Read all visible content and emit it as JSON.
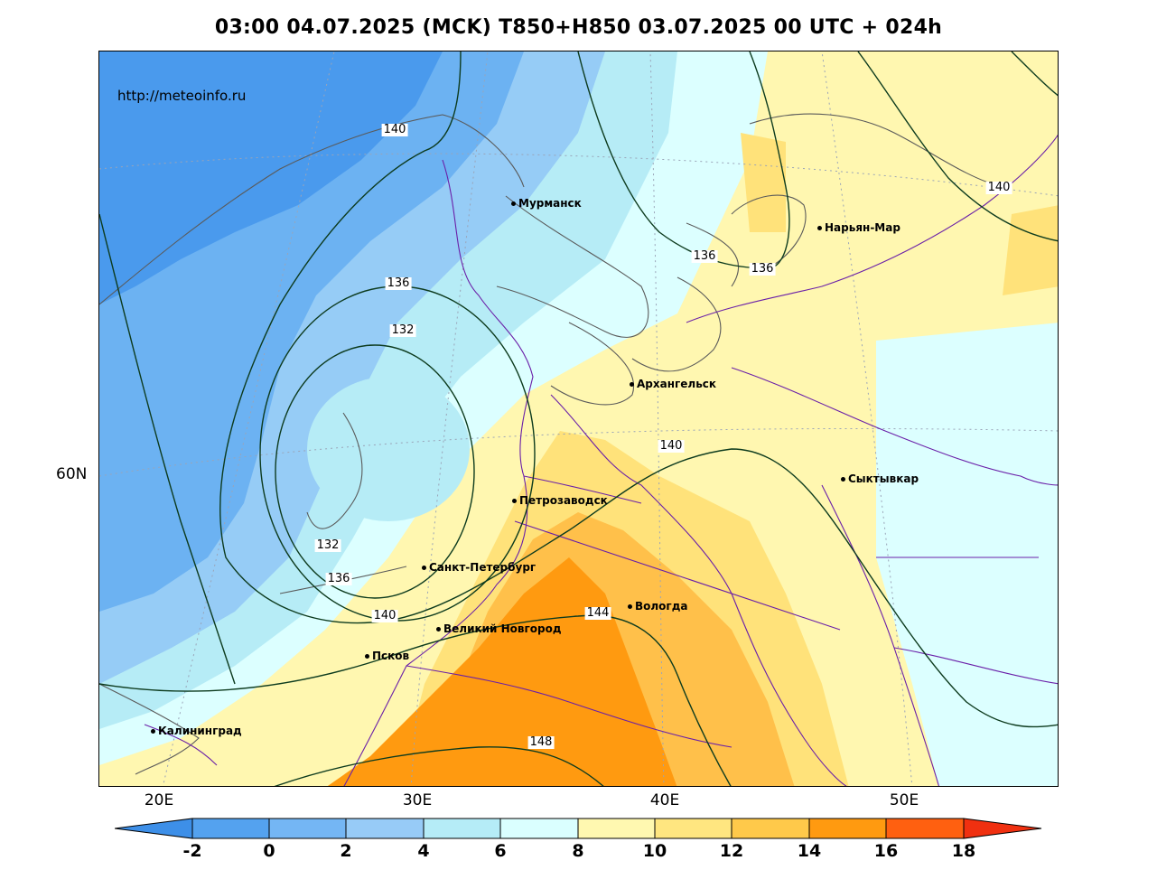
{
  "title": "03:00 04.07.2025 (MCK) T850+H850 03.07.2025 00 UTC + 024h",
  "site_url": "http://meteoinfo.ru",
  "axis_labels": {
    "lon": [
      "20E",
      "30E",
      "40E",
      "50E"
    ],
    "lat": [
      "60N"
    ]
  },
  "cities": [
    {
      "name": "Мурманск"
    },
    {
      "name": "Нарьян-Мар"
    },
    {
      "name": "Архангельск"
    },
    {
      "name": "Сыктывкар"
    },
    {
      "name": "Петрозаводск"
    },
    {
      "name": "Санкт-Петербург"
    },
    {
      "name": "Вологда"
    },
    {
      "name": "Великий Новгород"
    },
    {
      "name": "Псков"
    },
    {
      "name": "Калининград"
    }
  ],
  "contour_labels": [
    "140",
    "140",
    "136",
    "136",
    "136",
    "132",
    "132",
    "136",
    "140",
    "140",
    "144",
    "148",
    "140"
  ],
  "colorbar": {
    "ticks": [
      "-2",
      "0",
      "2",
      "4",
      "6",
      "8",
      "10",
      "12",
      "14",
      "16",
      "18"
    ],
    "colors": [
      "#3d8fe8",
      "#54a2ef",
      "#74b6f4",
      "#97cbf7",
      "#b5ecf7",
      "#daffff",
      "#fff8b0",
      "#ffe680",
      "#ffc94a",
      "#ff9a10",
      "#ff6010",
      "#f03010"
    ]
  },
  "regions": {
    "colors": {
      "deep_blue": "#4a9aed",
      "blue": "#6cb2f2",
      "light_blue": "#96ccf6",
      "cyan": "#b6ecf6",
      "pale_cyan": "#dcffff",
      "pale_yellow": "#fff7b0",
      "yellow": "#ffe27a",
      "light_orange": "#ffc04a",
      "orange": "#ff9a10"
    }
  }
}
